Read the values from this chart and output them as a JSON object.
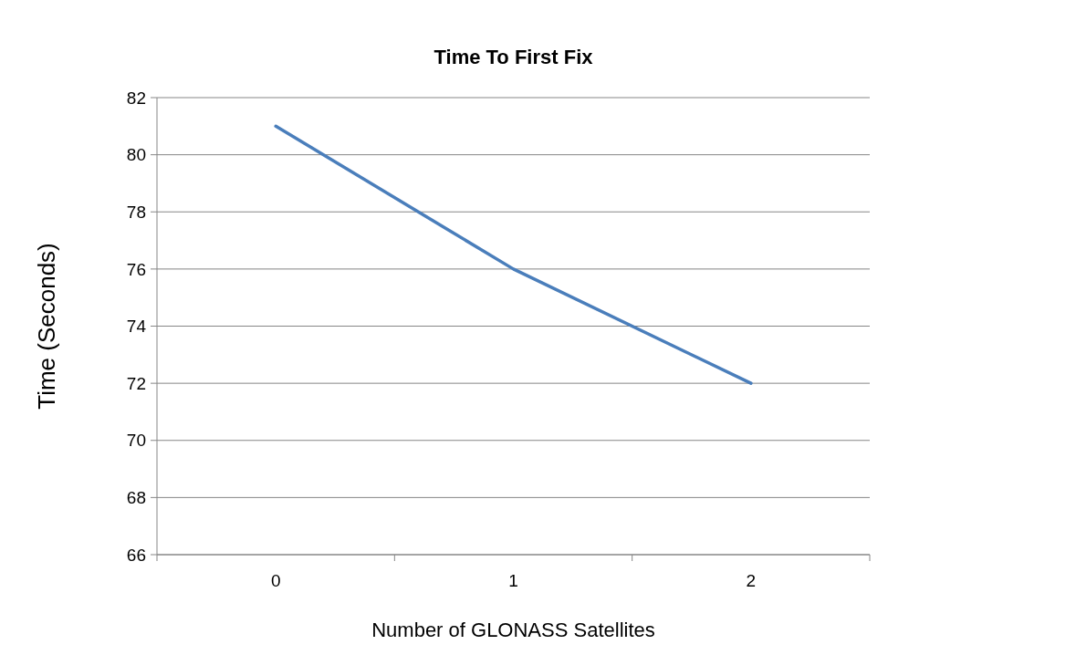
{
  "chart_data": {
    "type": "line",
    "title": "Time To First Fix",
    "xlabel": "Number of GLONASS Satellites",
    "ylabel": "Time (Seconds)",
    "categories": [
      "0",
      "1",
      "2"
    ],
    "series": [
      {
        "color": "#4a7ebb",
        "values": [
          81,
          76,
          72
        ]
      }
    ],
    "ylim": [
      66,
      82
    ],
    "yticks": [
      66,
      68,
      70,
      72,
      74,
      76,
      78,
      80,
      82
    ],
    "grid": "y",
    "marker": "none",
    "line_style": "solid"
  }
}
